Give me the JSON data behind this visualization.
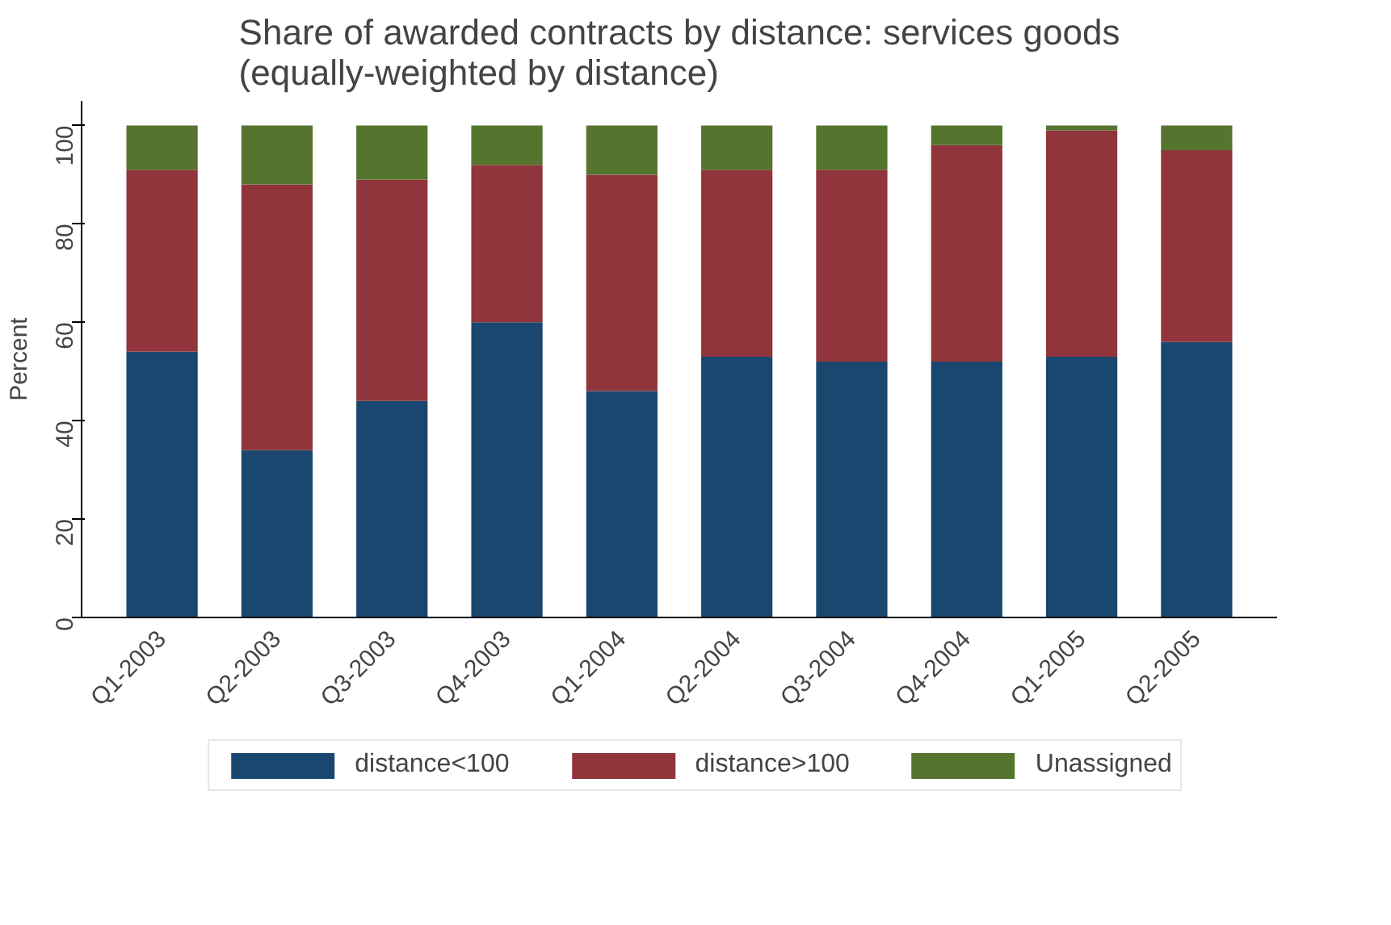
{
  "chart_data": {
    "type": "bar",
    "stacked": true,
    "title": "Share of awarded contracts by distance: services goods\n(equally-weighted by distance)",
    "ylabel": "Percent",
    "categories": [
      "Q1-2003",
      "Q2-2003",
      "Q3-2003",
      "Q4-2003",
      "Q1-2004",
      "Q2-2004",
      "Q3-2004",
      "Q4-2004",
      "Q1-2005",
      "Q2-2005"
    ],
    "series": [
      {
        "name": "distance<100",
        "color": "#1a476f",
        "values": [
          54,
          34,
          44,
          60,
          46,
          53,
          52,
          52,
          53,
          56
        ]
      },
      {
        "name": "distance>100",
        "color": "#90353b",
        "values": [
          37,
          54,
          45,
          32,
          44,
          38,
          39,
          44,
          46,
          39
        ]
      },
      {
        "name": "Unassigned",
        "color": "#55752f",
        "values": [
          9,
          12,
          11,
          8,
          10,
          9,
          9,
          4,
          1,
          5
        ]
      }
    ],
    "ylim": [
      0,
      105
    ],
    "yticks": [
      0,
      20,
      40,
      60,
      80,
      100
    ],
    "grid": false,
    "legend": "bottom"
  }
}
